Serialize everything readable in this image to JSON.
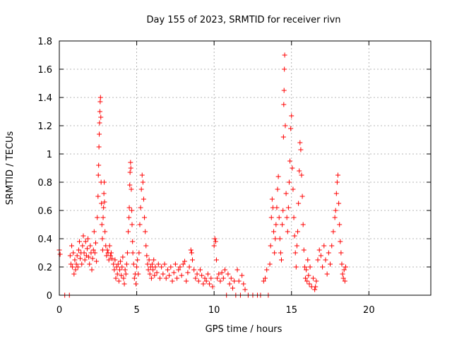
{
  "chart_data": {
    "type": "scatter",
    "title": "Day 155 of 2023, SRMTID for receiver rivn",
    "xlabel": "GPS time / hours",
    "ylabel": "SRMTID / TECUs",
    "xlim": [
      0,
      24
    ],
    "ylim": [
      0,
      1.8
    ],
    "x_ticks": [
      0,
      5,
      10,
      15,
      20
    ],
    "x_tick_labels": [
      "0",
      "5",
      "10",
      "15",
      "20"
    ],
    "y_ticks": [
      0,
      0.2,
      0.4,
      0.6,
      0.8,
      1.0,
      1.2,
      1.4,
      1.6,
      1.8
    ],
    "y_tick_labels": [
      "0",
      "0.2",
      "0.4",
      "0.6",
      "0.8",
      "1",
      "1.2",
      "1.4",
      "1.6",
      "1.8"
    ],
    "grid": true,
    "marker": "plus",
    "color": "#ff0000",
    "series": [
      {
        "name": "SRMTID",
        "points": [
          [
            0.0,
            0.32
          ],
          [
            0.05,
            0.29
          ],
          [
            0.35,
            0.0
          ],
          [
            0.65,
            0.0
          ],
          [
            0.7,
            0.28
          ],
          [
            0.75,
            0.22
          ],
          [
            0.8,
            0.35
          ],
          [
            0.85,
            0.2
          ],
          [
            0.9,
            0.3
          ],
          [
            0.95,
            0.15
          ],
          [
            1.0,
            0.25
          ],
          [
            1.05,
            0.18
          ],
          [
            1.1,
            0.22
          ],
          [
            1.15,
            0.28
          ],
          [
            1.2,
            0.2
          ],
          [
            1.25,
            0.32
          ],
          [
            1.3,
            0.38
          ],
          [
            1.35,
            0.26
          ],
          [
            1.4,
            0.3
          ],
          [
            1.45,
            0.22
          ],
          [
            1.5,
            0.35
          ],
          [
            1.55,
            0.42
          ],
          [
            1.6,
            0.3
          ],
          [
            1.65,
            0.25
          ],
          [
            1.7,
            0.38
          ],
          [
            1.75,
            0.28
          ],
          [
            1.8,
            0.33
          ],
          [
            1.85,
            0.4
          ],
          [
            1.9,
            0.27
          ],
          [
            1.95,
            0.22
          ],
          [
            2.0,
            0.35
          ],
          [
            2.05,
            0.3
          ],
          [
            2.1,
            0.18
          ],
          [
            2.15,
            0.26
          ],
          [
            2.2,
            0.32
          ],
          [
            2.25,
            0.45
          ],
          [
            2.3,
            0.3
          ],
          [
            2.35,
            0.37
          ],
          [
            2.4,
            0.24
          ],
          [
            2.45,
            0.55
          ],
          [
            2.5,
            0.7
          ],
          [
            2.52,
            0.85
          ],
          [
            2.54,
            0.92
          ],
          [
            2.56,
            1.05
          ],
          [
            2.58,
            1.14
          ],
          [
            2.6,
            1.22
          ],
          [
            2.62,
            1.3
          ],
          [
            2.64,
            1.37
          ],
          [
            2.66,
            1.4
          ],
          [
            2.68,
            1.26
          ],
          [
            2.7,
            0.8
          ],
          [
            2.72,
            0.65
          ],
          [
            2.75,
            0.5
          ],
          [
            2.78,
            0.4
          ],
          [
            2.8,
            0.32
          ],
          [
            2.83,
            0.55
          ],
          [
            2.86,
            0.62
          ],
          [
            2.88,
            0.72
          ],
          [
            2.9,
            0.8
          ],
          [
            2.92,
            0.66
          ],
          [
            2.95,
            0.45
          ],
          [
            3.0,
            0.35
          ],
          [
            3.05,
            0.28
          ],
          [
            3.1,
            0.32
          ],
          [
            3.15,
            0.3
          ],
          [
            3.2,
            0.25
          ],
          [
            3.25,
            0.35
          ],
          [
            3.3,
            0.28
          ],
          [
            3.35,
            0.3
          ],
          [
            3.4,
            0.26
          ],
          [
            3.5,
            0.22
          ],
          [
            3.55,
            0.18
          ],
          [
            3.6,
            0.25
          ],
          [
            3.65,
            0.12
          ],
          [
            3.7,
            0.2
          ],
          [
            3.75,
            0.15
          ],
          [
            3.8,
            0.22
          ],
          [
            3.85,
            0.1
          ],
          [
            3.9,
            0.18
          ],
          [
            3.95,
            0.24
          ],
          [
            4.0,
            0.14
          ],
          [
            4.05,
            0.2
          ],
          [
            4.1,
            0.27
          ],
          [
            4.15,
            0.12
          ],
          [
            4.2,
            0.08
          ],
          [
            4.25,
            0.18
          ],
          [
            4.3,
            0.15
          ],
          [
            4.35,
            0.22
          ],
          [
            4.4,
            0.3
          ],
          [
            4.45,
            0.45
          ],
          [
            4.5,
            0.55
          ],
          [
            4.52,
            0.62
          ],
          [
            4.55,
            0.78
          ],
          [
            4.57,
            0.87
          ],
          [
            4.6,
            0.94
          ],
          [
            4.62,
            0.9
          ],
          [
            4.65,
            0.75
          ],
          [
            4.68,
            0.6
          ],
          [
            4.7,
            0.5
          ],
          [
            4.73,
            0.38
          ],
          [
            4.75,
            0.3
          ],
          [
            4.8,
            0.22
          ],
          [
            4.85,
            0.12
          ],
          [
            4.9,
            0.15
          ],
          [
            4.95,
            0.08
          ],
          [
            5.0,
            0.2
          ],
          [
            5.05,
            0.25
          ],
          [
            5.1,
            0.15
          ],
          [
            5.15,
            0.3
          ],
          [
            5.2,
            0.5
          ],
          [
            5.25,
            0.62
          ],
          [
            5.3,
            0.75
          ],
          [
            5.35,
            0.85
          ],
          [
            5.4,
            0.8
          ],
          [
            5.45,
            0.68
          ],
          [
            5.5,
            0.55
          ],
          [
            5.55,
            0.45
          ],
          [
            5.6,
            0.35
          ],
          [
            5.65,
            0.28
          ],
          [
            5.7,
            0.22
          ],
          [
            5.75,
            0.18
          ],
          [
            5.8,
            0.25
          ],
          [
            5.85,
            0.15
          ],
          [
            5.9,
            0.2
          ],
          [
            5.95,
            0.12
          ],
          [
            6.0,
            0.22
          ],
          [
            6.05,
            0.18
          ],
          [
            6.1,
            0.25
          ],
          [
            6.15,
            0.14
          ],
          [
            6.2,
            0.2
          ],
          [
            6.3,
            0.16
          ],
          [
            6.4,
            0.22
          ],
          [
            6.5,
            0.12
          ],
          [
            6.6,
            0.2
          ],
          [
            6.7,
            0.15
          ],
          [
            6.8,
            0.22
          ],
          [
            6.9,
            0.12
          ],
          [
            7.0,
            0.18
          ],
          [
            7.1,
            0.14
          ],
          [
            7.2,
            0.2
          ],
          [
            7.3,
            0.1
          ],
          [
            7.4,
            0.16
          ],
          [
            7.5,
            0.22
          ],
          [
            7.6,
            0.12
          ],
          [
            7.7,
            0.18
          ],
          [
            7.8,
            0.2
          ],
          [
            7.9,
            0.14
          ],
          [
            8.0,
            0.22
          ],
          [
            8.1,
            0.24
          ],
          [
            8.2,
            0.1
          ],
          [
            8.3,
            0.16
          ],
          [
            8.4,
            0.2
          ],
          [
            8.5,
            0.32
          ],
          [
            8.55,
            0.3
          ],
          [
            8.6,
            0.25
          ],
          [
            8.7,
            0.18
          ],
          [
            8.8,
            0.12
          ],
          [
            8.9,
            0.15
          ],
          [
            9.0,
            0.1
          ],
          [
            9.1,
            0.18
          ],
          [
            9.2,
            0.14
          ],
          [
            9.3,
            0.08
          ],
          [
            9.4,
            0.12
          ],
          [
            9.5,
            0.1
          ],
          [
            9.6,
            0.15
          ],
          [
            9.7,
            0.08
          ],
          [
            9.8,
            0.12
          ],
          [
            9.9,
            0.06
          ],
          [
            10.0,
            0.35
          ],
          [
            10.05,
            0.4
          ],
          [
            10.1,
            0.38
          ],
          [
            10.15,
            0.25
          ],
          [
            10.2,
            0.12
          ],
          [
            10.3,
            0.15
          ],
          [
            10.4,
            0.1
          ],
          [
            10.5,
            0.16
          ],
          [
            10.6,
            0.12
          ],
          [
            10.7,
            0.18
          ],
          [
            10.8,
            0.0
          ],
          [
            10.9,
            0.15
          ],
          [
            11.0,
            0.08
          ],
          [
            11.1,
            0.12
          ],
          [
            11.2,
            0.05
          ],
          [
            11.3,
            0.1
          ],
          [
            11.4,
            0.0
          ],
          [
            11.5,
            0.18
          ],
          [
            11.6,
            0.1
          ],
          [
            11.7,
            0.0
          ],
          [
            11.8,
            0.14
          ],
          [
            11.9,
            0.08
          ],
          [
            12.0,
            0.04
          ],
          [
            12.2,
            0.0
          ],
          [
            12.5,
            0.0
          ],
          [
            12.8,
            0.0
          ],
          [
            13.0,
            0.0
          ],
          [
            13.2,
            0.1
          ],
          [
            13.3,
            0.12
          ],
          [
            13.4,
            0.18
          ],
          [
            13.5,
            0.0
          ],
          [
            13.6,
            0.22
          ],
          [
            13.65,
            0.35
          ],
          [
            13.7,
            0.55
          ],
          [
            13.75,
            0.68
          ],
          [
            13.8,
            0.62
          ],
          [
            13.85,
            0.45
          ],
          [
            13.9,
            0.3
          ],
          [
            13.95,
            0.4
          ],
          [
            14.0,
            0.5
          ],
          [
            14.05,
            0.62
          ],
          [
            14.1,
            0.75
          ],
          [
            14.15,
            0.84
          ],
          [
            14.2,
            0.55
          ],
          [
            14.25,
            0.4
          ],
          [
            14.3,
            0.3
          ],
          [
            14.35,
            0.25
          ],
          [
            14.4,
            0.5
          ],
          [
            14.45,
            0.6
          ],
          [
            14.48,
            1.12
          ],
          [
            14.5,
            1.35
          ],
          [
            14.52,
            1.45
          ],
          [
            14.54,
            1.6
          ],
          [
            14.56,
            1.7
          ],
          [
            14.6,
            1.2
          ],
          [
            14.65,
            0.72
          ],
          [
            14.7,
            0.55
          ],
          [
            14.75,
            0.45
          ],
          [
            14.8,
            0.62
          ],
          [
            14.85,
            0.8
          ],
          [
            14.9,
            0.95
          ],
          [
            14.95,
            1.18
          ],
          [
            15.0,
            1.27
          ],
          [
            15.05,
            0.9
          ],
          [
            15.1,
            0.75
          ],
          [
            15.15,
            0.55
          ],
          [
            15.2,
            0.42
          ],
          [
            15.25,
            0.3
          ],
          [
            15.3,
            0.2
          ],
          [
            15.35,
            0.35
          ],
          [
            15.4,
            0.45
          ],
          [
            15.45,
            0.65
          ],
          [
            15.5,
            0.88
          ],
          [
            15.55,
            1.08
          ],
          [
            15.6,
            1.03
          ],
          [
            15.65,
            0.85
          ],
          [
            15.7,
            0.7
          ],
          [
            15.75,
            0.5
          ],
          [
            15.8,
            0.32
          ],
          [
            15.85,
            0.2
          ],
          [
            15.9,
            0.12
          ],
          [
            15.95,
            0.18
          ],
          [
            16.0,
            0.1
          ],
          [
            16.05,
            0.25
          ],
          [
            16.1,
            0.14
          ],
          [
            16.15,
            0.08
          ],
          [
            16.2,
            0.2
          ],
          [
            16.3,
            0.06
          ],
          [
            16.4,
            0.12
          ],
          [
            16.5,
            0.04
          ],
          [
            16.55,
            0.06
          ],
          [
            16.6,
            0.1
          ],
          [
            16.7,
            0.25
          ],
          [
            16.8,
            0.32
          ],
          [
            16.9,
            0.28
          ],
          [
            17.0,
            0.2
          ],
          [
            17.1,
            0.35
          ],
          [
            17.2,
            0.25
          ],
          [
            17.3,
            0.15
          ],
          [
            17.4,
            0.3
          ],
          [
            17.5,
            0.22
          ],
          [
            17.6,
            0.35
          ],
          [
            17.7,
            0.45
          ],
          [
            17.8,
            0.55
          ],
          [
            17.85,
            0.6
          ],
          [
            17.9,
            0.72
          ],
          [
            17.95,
            0.8
          ],
          [
            18.0,
            0.85
          ],
          [
            18.05,
            0.65
          ],
          [
            18.1,
            0.5
          ],
          [
            18.15,
            0.38
          ],
          [
            18.2,
            0.3
          ],
          [
            18.25,
            0.22
          ],
          [
            18.3,
            0.15
          ],
          [
            18.35,
            0.12
          ],
          [
            18.4,
            0.18
          ],
          [
            18.45,
            0.1
          ],
          [
            18.5,
            0.2
          ]
        ]
      }
    ]
  }
}
